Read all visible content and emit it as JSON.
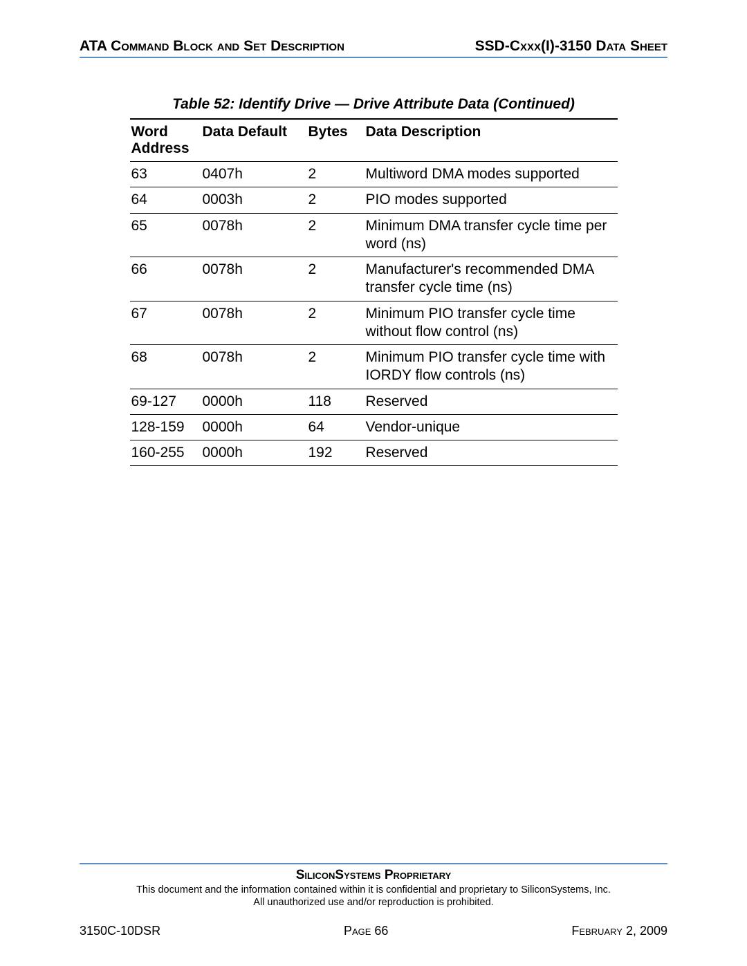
{
  "header": {
    "left": "ATA Command Block and Set Description",
    "right": "SSD-Cxxx(I)-3150 Data Sheet"
  },
  "table_caption": "Table 52:  Identify Drive — Drive Attribute Data  (Continued)",
  "table": {
    "columns": [
      "Word Address",
      "Data Default",
      "Bytes",
      "Data Description"
    ],
    "rows": [
      [
        "63",
        "0407h",
        "2",
        "Multiword DMA modes supported"
      ],
      [
        "64",
        "0003h",
        "2",
        "PIO modes supported"
      ],
      [
        "65",
        "0078h",
        "2",
        "Minimum DMA transfer cycle time per word (ns)"
      ],
      [
        "66",
        "0078h",
        "2",
        "Manufacturer's recommended DMA transfer cycle time (ns)"
      ],
      [
        "67",
        "0078h",
        "2",
        "Minimum PIO transfer cycle time without flow control (ns)"
      ],
      [
        "68",
        "0078h",
        "2",
        "Minimum PIO transfer cycle time with IORDY flow controls (ns)"
      ],
      [
        "69-127",
        "0000h",
        "118",
        "Reserved"
      ],
      [
        "128-159",
        "0000h",
        "64",
        "Vendor-unique"
      ],
      [
        "160-255",
        "0000h",
        "192",
        "Reserved"
      ]
    ]
  },
  "footer": {
    "proprietary": "SiliconSystems Proprietary",
    "disclaimer1": "This document and the information contained within it is confidential and proprietary to SiliconSystems, Inc.",
    "disclaimer2": "All unauthorized use and/or reproduction is prohibited.",
    "doc_code": "3150C-10DSR",
    "page": "Page 66",
    "date": "February 2, 2009"
  },
  "colors": {
    "rule": "#5a8fbf",
    "text": "#000000",
    "bg": "#ffffff"
  }
}
